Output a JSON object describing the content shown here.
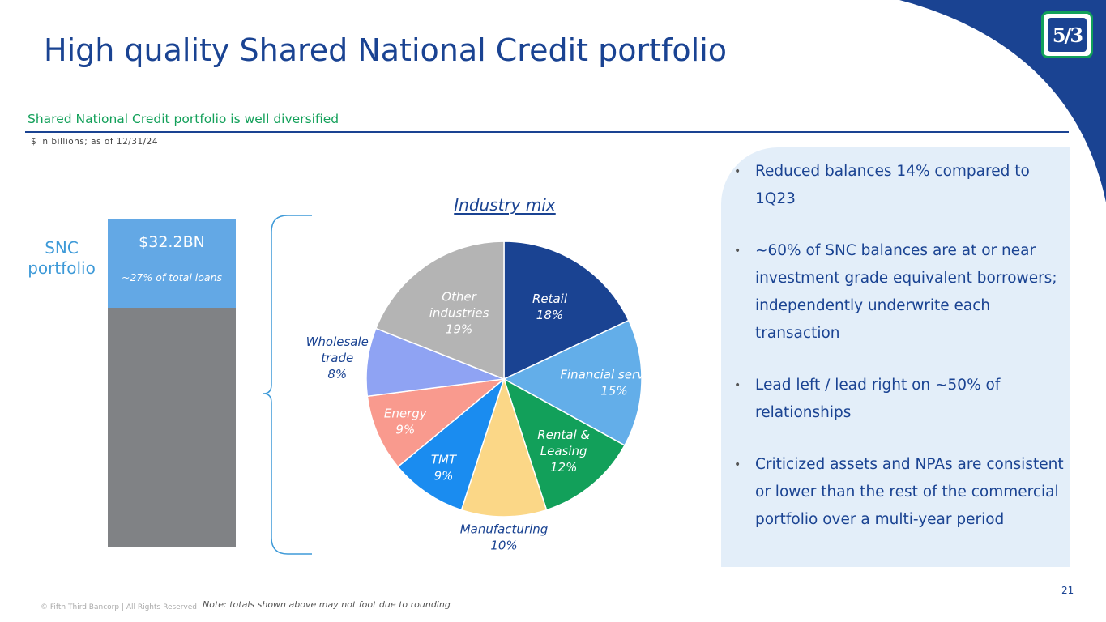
{
  "slide": {
    "title": "High quality Shared National Credit portfolio",
    "subtitle": "Shared National Credit portfolio is well diversified",
    "units_note": "$ in billions; as of 12/31/24",
    "page_number": "21",
    "copyright": "© Fifth Third Bancorp | All Rights Reserved",
    "footnote": "Note: totals shown above may not foot due to rounding",
    "logo_text": "5/3"
  },
  "bar": {
    "category_label": "SNC portfolio",
    "value_label": "$32.2BN",
    "share_label": "~27% of total loans",
    "snc_share": 0.27
  },
  "chart_data": [
    {
      "type": "bar",
      "stacked": true,
      "categories": [
        "SNC portfolio"
      ],
      "series": [
        {
          "name": "SNC portfolio",
          "values": [
            32.2
          ]
        }
      ],
      "annotations": [
        "$32.2BN",
        "~27% of total loans"
      ]
    },
    {
      "type": "pie",
      "title": "Industry mix",
      "slices": [
        {
          "label": "Retail",
          "value": 18,
          "value_label": "18%",
          "color": "#1a4392"
        },
        {
          "label": "Financial services",
          "value": 15,
          "value_label": "15%",
          "color": "#63aee9"
        },
        {
          "label": "Rental & Leasing",
          "value": 12,
          "value_label": "12%",
          "color": "#12a05a"
        },
        {
          "label": "Manufacturing",
          "value": 10,
          "value_label": "10%",
          "color": "#fbd787"
        },
        {
          "label": "TMT",
          "value": 9,
          "value_label": "9%",
          "color": "#1a8cf0"
        },
        {
          "label": "Energy",
          "value": 9,
          "value_label": "9%",
          "color": "#f99a8e"
        },
        {
          "label": "Wholesale trade",
          "value": 8,
          "value_label": "8%",
          "color": "#8fa3f3"
        },
        {
          "label": "Other industries",
          "value": 19,
          "value_label": "19%",
          "color": "#b4b4b4"
        }
      ]
    }
  ],
  "bullets": [
    "Reduced balances 14% compared to 1Q23",
    "~60% of SNC balances are at or near investment grade equivalent borrowers; independently underwrite each transaction",
    "Lead left / lead right on ~50% of relationships",
    "Criticized assets and NPAs are consistent or lower than the rest of the commercial portfolio over a multi-year period"
  ],
  "colors": {
    "brand_blue": "#1a4392",
    "brand_green": "#12a05a",
    "light_blue": "#63a8e5",
    "bar_gray": "#808285",
    "panel_bg": "#e3eef9"
  }
}
